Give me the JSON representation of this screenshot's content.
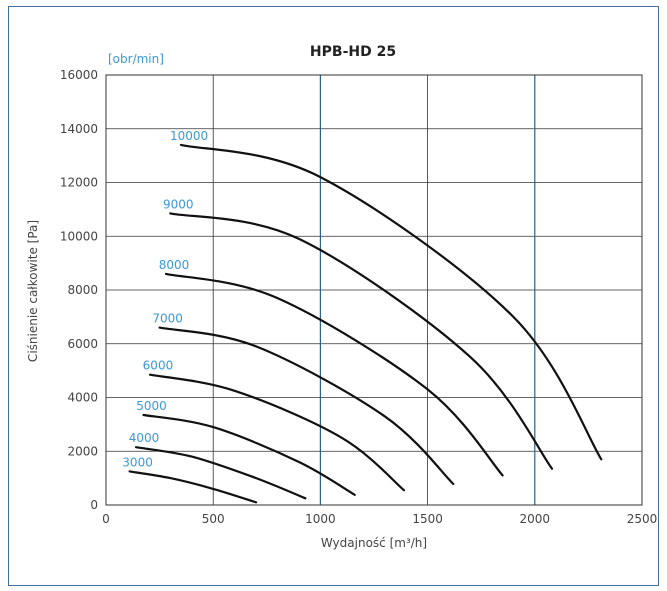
{
  "chart_data": {
    "type": "line",
    "title": "HPB-HD 25",
    "xlabel": "Wydajność [m³/h]",
    "ylabel": "Ciśnienie całkowite [Pa]",
    "unit_label": "[obr/min]",
    "xlim": [
      0,
      2500
    ],
    "ylim": [
      0,
      16000
    ],
    "xticks": [
      0,
      500,
      1000,
      1500,
      2000,
      2500
    ],
    "yticks": [
      0,
      2000,
      4000,
      6000,
      8000,
      10000,
      12000,
      14000,
      16000
    ],
    "grid": true,
    "colors": {
      "curve": "#111111",
      "label": "#3a9ad9",
      "grid": "#333333",
      "grid_major": "#2f5f8a"
    },
    "series": [
      {
        "name": "3000",
        "x": [
          110,
          300,
          500,
          700
        ],
        "y": [
          1250,
          1000,
          600,
          100
        ]
      },
      {
        "name": "4000",
        "x": [
          140,
          400,
          700,
          930
        ],
        "y": [
          2150,
          1800,
          1000,
          250
        ]
      },
      {
        "name": "5000",
        "x": [
          175,
          500,
          900,
          1160
        ],
        "y": [
          3350,
          2900,
          1600,
          380
        ]
      },
      {
        "name": "6000",
        "x": [
          205,
          600,
          1100,
          1390
        ],
        "y": [
          4850,
          4250,
          2500,
          550
        ]
      },
      {
        "name": "7000",
        "x": [
          250,
          700,
          1300,
          1620
        ],
        "y": [
          6600,
          5900,
          3300,
          780
        ]
      },
      {
        "name": "8000",
        "x": [
          280,
          800,
          1500,
          1850
        ],
        "y": [
          8600,
          7700,
          4300,
          1100
        ]
      },
      {
        "name": "9000",
        "x": [
          300,
          900,
          1700,
          2080
        ],
        "y": [
          10850,
          9900,
          5500,
          1350
        ]
      },
      {
        "name": "10000",
        "x": [
          350,
          1000,
          1900,
          2310
        ],
        "y": [
          13400,
          12200,
          7000,
          1700
        ]
      }
    ]
  }
}
